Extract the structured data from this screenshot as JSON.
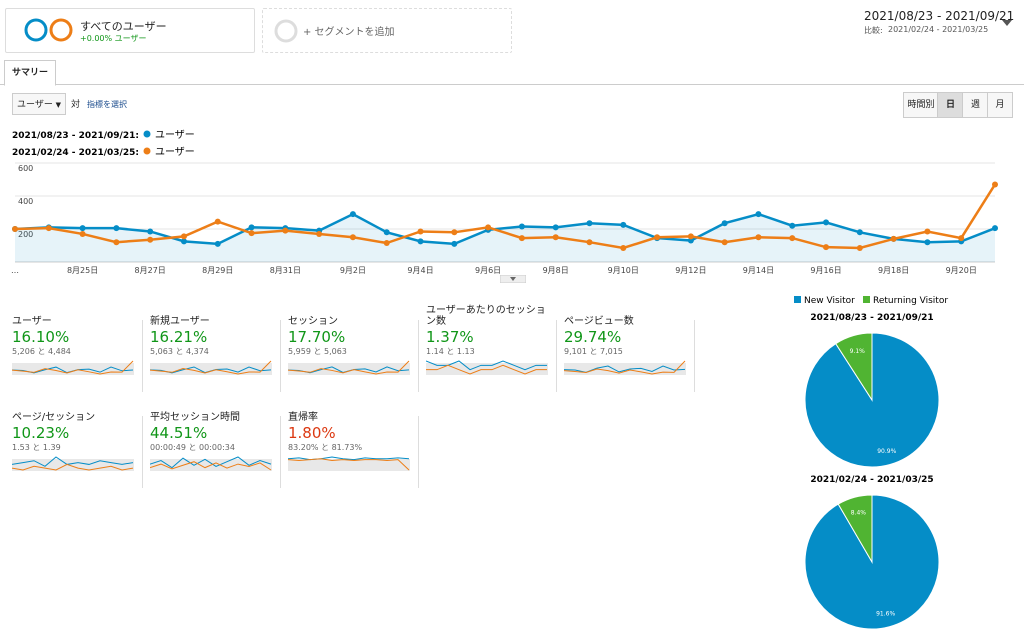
{
  "header": {
    "segment_name": "すべてのユーザー",
    "segment_change": "+0.00% ユーザー",
    "add_segment": "+ セグメントを追加",
    "date_range": "2021/08/23 - 2021/09/21",
    "compare_label": "比較:",
    "compare_range": "2021/02/24 - 2021/03/25"
  },
  "tab": "サマリー",
  "controls": {
    "metric": "ユーザー",
    "vs": "対",
    "select_metric": "指標を選択",
    "buttons": [
      "時間別",
      "日",
      "週",
      "月"
    ],
    "active_button": 1
  },
  "chart_data": {
    "type": "line",
    "categories": [
      "…",
      null,
      "8月25日",
      null,
      "8月27日",
      null,
      "8月29日",
      null,
      "8月31日",
      null,
      "9月2日",
      null,
      "9月4日",
      null,
      "9月6日",
      null,
      "9月8日",
      null,
      "9月10日",
      null,
      "9月12日",
      null,
      "9月14日",
      null,
      "9月16日",
      null,
      "9月18日",
      null,
      "9月20日",
      null
    ],
    "series": [
      {
        "period": "2021/08/23 - 2021/09/21:",
        "name": "ユーザー",
        "color": "#058dc7",
        "values": [
          200,
          210,
          205,
          205,
          185,
          125,
          110,
          210,
          205,
          190,
          290,
          180,
          125,
          110,
          195,
          215,
          210,
          235,
          225,
          145,
          130,
          235,
          290,
          220,
          240,
          180,
          140,
          120,
          125,
          205
        ]
      },
      {
        "period": "2021/02/24 - 2021/03/25:",
        "name": "ユーザー",
        "color": "#ed7e17",
        "values": [
          200,
          205,
          170,
          120,
          135,
          155,
          245,
          175,
          190,
          170,
          150,
          115,
          185,
          180,
          210,
          145,
          150,
          120,
          85,
          150,
          155,
          120,
          150,
          145,
          90,
          85,
          140,
          185,
          145,
          470
        ]
      }
    ],
    "ylim": [
      0,
      600
    ],
    "yticks": [
      200,
      400,
      600
    ],
    "grid": true
  },
  "metrics": [
    {
      "label": "ユーザー",
      "change": "16.10%",
      "color": "#109618",
      "detail": "5,206 と 4,484",
      "spark": [
        [
          205,
          190,
          120,
          210,
          290,
          125,
          215,
          230,
          140,
          290,
          180,
          205
        ],
        [
          200,
          170,
          135,
          245,
          190,
          115,
          210,
          150,
          85,
          145,
          140,
          470
        ]
      ]
    },
    {
      "label": "新規ユーザー",
      "change": "16.21%",
      "color": "#109618",
      "detail": "5,063 と 4,374",
      "spark": [
        [
          200,
          185,
          115,
          205,
          285,
          120,
          210,
          225,
          135,
          285,
          175,
          200
        ],
        [
          195,
          165,
          130,
          240,
          185,
          110,
          205,
          145,
          80,
          140,
          135,
          460
        ]
      ]
    },
    {
      "label": "セッション",
      "change": "17.70%",
      "color": "#109618",
      "detail": "5,959 と 5,063",
      "spark": [
        [
          230,
          215,
          140,
          240,
          330,
          150,
          245,
          265,
          165,
          330,
          205,
          235
        ],
        [
          225,
          195,
          155,
          275,
          215,
          135,
          240,
          170,
          100,
          165,
          160,
          520
        ]
      ]
    },
    {
      "label": "ユーザーあたりのセッション数",
      "change": "1.37%",
      "color": "#109618",
      "detail": "1.14 と 1.13",
      "spark": [
        [
          1.15,
          1.14,
          1.14,
          1.15,
          1.13,
          1.14,
          1.14,
          1.15,
          1.14,
          1.13,
          1.14,
          1.14
        ],
        [
          1.13,
          1.13,
          1.14,
          1.13,
          1.12,
          1.13,
          1.13,
          1.14,
          1.13,
          1.12,
          1.13,
          1.13
        ]
      ]
    },
    {
      "label": "ページビュー数",
      "change": "29.74%",
      "color": "#109618",
      "detail": "9,101 と 7,015",
      "spark": [
        [
          350,
          330,
          220,
          420,
          520,
          240,
          380,
          410,
          260,
          520,
          330,
          360
        ],
        [
          300,
          260,
          210,
          380,
          300,
          180,
          330,
          240,
          140,
          230,
          220,
          760
        ]
      ]
    },
    {
      "label": "ページ/セッション",
      "change": "10.23%",
      "color": "#109618",
      "detail": "1.53 と 1.39",
      "spark": [
        [
          1.5,
          1.55,
          1.6,
          1.45,
          1.7,
          1.5,
          1.55,
          1.5,
          1.6,
          1.55,
          1.5,
          1.55
        ],
        [
          1.4,
          1.35,
          1.45,
          1.4,
          1.35,
          1.5,
          1.4,
          1.35,
          1.4,
          1.45,
          1.35,
          1.4
        ]
      ]
    },
    {
      "label": "平均セッション時間",
      "change": "44.51%",
      "color": "#109618",
      "detail": "00:00:49 と 00:00:34",
      "spark": [
        [
          45,
          60,
          30,
          70,
          40,
          65,
          35,
          55,
          75,
          40,
          60,
          45
        ],
        [
          30,
          45,
          25,
          40,
          55,
          30,
          50,
          28,
          45,
          35,
          50,
          20
        ]
      ]
    },
    {
      "label": "直帰率",
      "change": "1.80%",
      "color": "#dc3912",
      "detail": "83.20% と 81.73%",
      "spark": [
        [
          83,
          84,
          82,
          83,
          85,
          83,
          82,
          84,
          83,
          83,
          84,
          83
        ],
        [
          82,
          81,
          82,
          83,
          81,
          82,
          81,
          82,
          82,
          81,
          82,
          70
        ]
      ]
    }
  ],
  "pie_legend": {
    "names": [
      "New Visitor",
      "Returning Visitor"
    ],
    "colors": [
      "#058dc7",
      "#50b432"
    ]
  },
  "pies": [
    {
      "type": "pie",
      "title": "2021/08/23 - 2021/09/21",
      "values": [
        90.9,
        9.1
      ],
      "value_labels": [
        "90.9%",
        "9.1%"
      ]
    },
    {
      "type": "pie",
      "title": "2021/02/24 - 2021/03/25",
      "values": [
        91.6,
        8.4
      ],
      "value_labels": [
        "91.6%",
        "8.4%"
      ]
    }
  ]
}
